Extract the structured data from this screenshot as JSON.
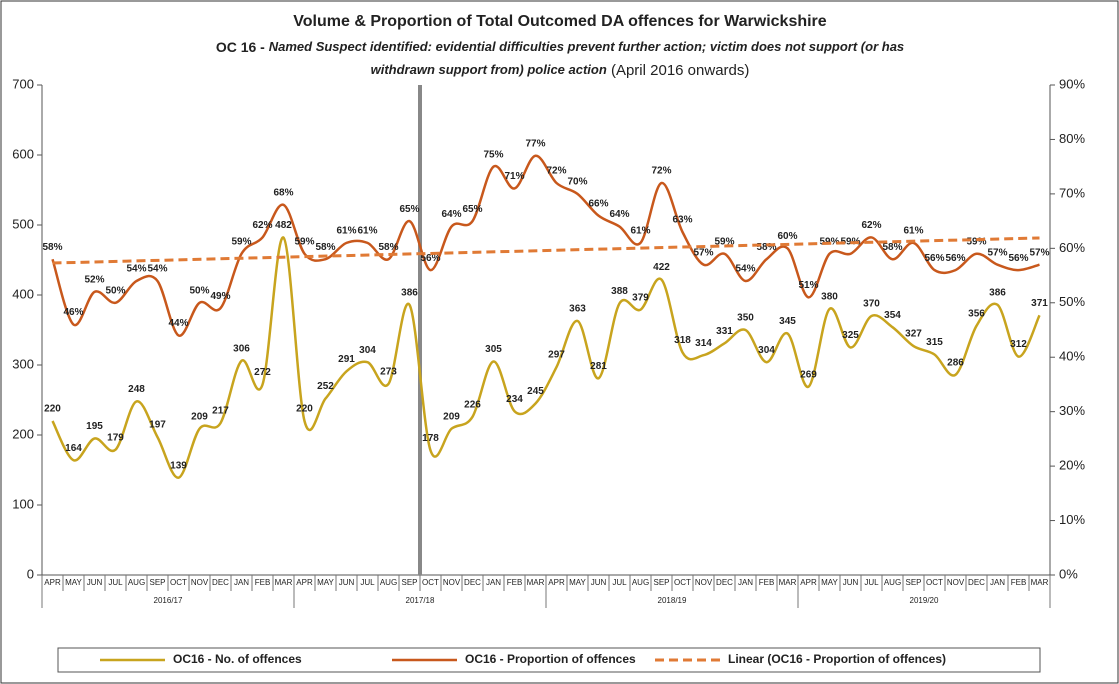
{
  "chart_data": {
    "type": "line",
    "title": "Volume & Proportion of Total Outcomed DA offences for Warwickshire",
    "subtitle": [
      [
        "OC 16 - ",
        "Named Suspect identified: evidential difficulties prevent further action; victim does not support (or has"
      ],
      [
        "withdrawn support from) police action",
        " (April 2016 onwards)"
      ]
    ],
    "categories": [
      "APR",
      "MAY",
      "JUN",
      "JUL",
      "AUG",
      "SEP",
      "OCT",
      "NOV",
      "DEC",
      "JAN",
      "FEB",
      "MAR",
      "APR",
      "MAY",
      "JUN",
      "JUL",
      "AUG",
      "SEP",
      "OCT",
      "NOV",
      "DEC",
      "JAN",
      "FEB",
      "MAR",
      "APR",
      "MAY",
      "JUN",
      "JUL",
      "AUG",
      "SEP",
      "OCT",
      "NOV",
      "DEC",
      "JAN",
      "FEB",
      "MAR",
      "APR",
      "MAY",
      "JUN",
      "JUL",
      "AUG",
      "SEP",
      "OCT",
      "NOV",
      "DEC",
      "JAN",
      "FEB",
      "MAR"
    ],
    "groups": [
      "2016/17",
      "2017/18",
      "2018/19",
      "2019/20"
    ],
    "series": [
      {
        "name": "OC16 - No. of offences",
        "color": "#c8a41e",
        "axis": "y",
        "values": [
          220,
          164,
          195,
          179,
          248,
          197,
          139,
          209,
          217,
          306,
          272,
          482,
          220,
          252,
          291,
          304,
          273,
          386,
          178,
          209,
          226,
          305,
          234,
          245,
          297,
          363,
          281,
          388,
          379,
          422,
          318,
          314,
          331,
          350,
          304,
          345,
          269,
          380,
          325,
          370,
          354,
          327,
          315,
          286,
          356,
          386,
          312,
          371
        ]
      },
      {
        "name": "OC16 - Proportion of offences",
        "color": "#c8581c",
        "axis": "y2",
        "values": [
          58,
          46,
          52,
          50,
          54,
          54,
          44,
          50,
          49,
          59,
          62,
          68,
          59,
          58,
          61,
          61,
          58,
          65,
          56,
          64,
          65,
          75,
          71,
          77,
          72,
          70,
          66,
          64,
          61,
          72,
          63,
          57,
          59,
          54,
          58,
          60,
          51,
          59,
          59,
          62,
          58,
          61,
          56,
          56,
          59,
          57,
          56,
          57
        ],
        "value_labels": [
          "58%",
          "46%",
          "52%",
          "50%",
          "54%",
          "54%",
          "44%",
          "50%",
          "49%",
          "59%",
          "62%",
          "68%",
          "59%",
          "58%",
          "61%",
          "61%",
          "58%",
          "65%",
          "56%",
          "64%",
          "65%",
          "75%",
          "71%",
          "77%",
          "72%",
          "70%",
          "66%",
          "64%",
          "61%",
          "72%",
          "63%",
          "57%",
          "59%",
          "54%",
          "58%",
          "60%",
          "51%",
          "59%",
          "59%",
          "62%",
          "58%",
          "61%",
          "56%",
          "56%",
          "59%",
          "57%",
          "56%",
          "57%"
        ]
      }
    ],
    "trend": {
      "name": "Linear (OC16 - Proportion of offences)",
      "color": "#e07a35",
      "axis": "y2",
      "start": 57.3,
      "end": 61.9
    },
    "ylim": [
      0,
      700
    ],
    "yticks": [
      0,
      100,
      200,
      300,
      400,
      500,
      600,
      700
    ],
    "y2lim": [
      0,
      90
    ],
    "y2ticks": [
      {
        "value": 0,
        "label": "0%"
      },
      {
        "value": 10,
        "label": "10%"
      },
      {
        "value": 20,
        "label": "20%"
      },
      {
        "value": 30,
        "label": "30%"
      },
      {
        "value": 40,
        "label": "40%"
      },
      {
        "value": 50,
        "label": "50%"
      },
      {
        "value": 60,
        "label": "60%"
      },
      {
        "value": 70,
        "label": "70%"
      },
      {
        "value": 80,
        "label": "80%"
      },
      {
        "value": 90,
        "label": "90%"
      }
    ],
    "legend": "bottom"
  }
}
